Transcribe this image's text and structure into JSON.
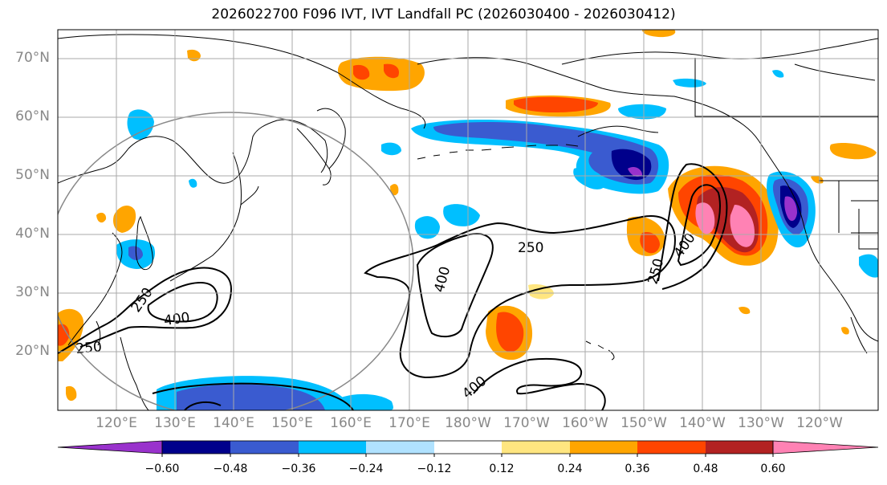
{
  "title": "2026022700 F096 IVT, IVT Landfall PC (2026030400 - 2026030412)",
  "lat_labels": [
    "70°N",
    "60°N",
    "50°N",
    "40°N",
    "30°N",
    "20°N"
  ],
  "lon_labels": [
    "120°E",
    "130°E",
    "140°E",
    "150°E",
    "160°E",
    "170°E",
    "180°W",
    "170°W",
    "160°W",
    "150°W",
    "140°W",
    "130°W",
    "120°W"
  ],
  "contour_labels": [
    "250",
    "400",
    "250",
    "400",
    "250",
    "400",
    "250",
    "400"
  ],
  "colorbar": {
    "colors": [
      "#9932cc",
      "#00008b",
      "#3a5bd0",
      "#00bfff",
      "#b0e2ff",
      "#ffffff",
      "#ffe680",
      "#ffa500",
      "#ff4500",
      "#b22222",
      "#ff82b4"
    ],
    "tick_labels": [
      "−0.60",
      "−0.48",
      "−0.36",
      "−0.24",
      "−0.12",
      "0.12",
      "0.24",
      "0.36",
      "0.48",
      "0.60"
    ]
  },
  "colors": {
    "grid": "#aaaaaa",
    "axis_label": "#888888",
    "contour": "#000000",
    "circle": "#888888"
  }
}
